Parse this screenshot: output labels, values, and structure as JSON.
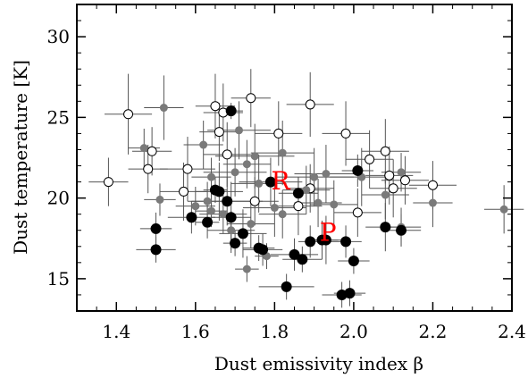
{
  "chart_data": {
    "type": "scatter",
    "xlabel": "Dust emissivity index β",
    "ylabel": "Dust temperature [K]",
    "xlim": [
      1.3,
      2.4
    ],
    "ylim": [
      13,
      32
    ],
    "xticks": [
      1.4,
      1.6,
      1.8,
      2.0,
      2.2,
      2.4
    ],
    "xtick_labels": [
      "1.4",
      "1.6",
      "1.8",
      "2.0",
      "2.2",
      "2.4"
    ],
    "yticks": [
      15,
      20,
      25,
      30
    ],
    "ytick_labels": [
      "15",
      "20",
      "25",
      "30"
    ],
    "grid": false,
    "colors": {
      "filled_black": "#000000",
      "filled_gray": "#7a7a7a",
      "open": "#000000",
      "annotation": "#ff0000",
      "errorbar": "#555555"
    },
    "annotations": [
      {
        "text": "R",
        "x": 1.815,
        "y": 21.1
      },
      {
        "text": "P",
        "x": 1.935,
        "y": 17.9
      }
    ],
    "series": [
      {
        "marker": "filled-black",
        "points": [
          {
            "x": 1.69,
            "y": 25.4,
            "xerr": 0.03,
            "yerr": 0.5
          },
          {
            "x": 1.79,
            "y": 21.0,
            "xerr": 0.08,
            "yerr": 1.5
          },
          {
            "x": 2.01,
            "y": 21.7,
            "xerr": 0.04,
            "yerr": 1.0
          },
          {
            "x": 1.65,
            "y": 20.5,
            "xerr": 0.03,
            "yerr": 0.8
          },
          {
            "x": 1.66,
            "y": 20.4,
            "xerr": 0.06,
            "yerr": 1.8
          },
          {
            "x": 1.68,
            "y": 19.8,
            "xerr": 0.09,
            "yerr": 1.5
          },
          {
            "x": 1.86,
            "y": 20.3,
            "xerr": 0.05,
            "yerr": 1.0
          },
          {
            "x": 1.69,
            "y": 18.8,
            "xerr": 0.05,
            "yerr": 2.2
          },
          {
            "x": 1.59,
            "y": 18.8,
            "xerr": 0.06,
            "yerr": 1.0
          },
          {
            "x": 1.63,
            "y": 18.5,
            "xerr": 0.03,
            "yerr": 1.0
          },
          {
            "x": 1.5,
            "y": 18.1,
            "xerr": 0.04,
            "yerr": 1.0
          },
          {
            "x": 1.72,
            "y": 17.8,
            "xerr": 0.06,
            "yerr": 1.5
          },
          {
            "x": 1.7,
            "y": 17.2,
            "xerr": 0.03,
            "yerr": 0.8
          },
          {
            "x": 1.76,
            "y": 16.9,
            "xerr": 0.04,
            "yerr": 0.8
          },
          {
            "x": 1.77,
            "y": 16.8,
            "xerr": 0.05,
            "yerr": 1.0
          },
          {
            "x": 1.5,
            "y": 16.8,
            "xerr": 0.05,
            "yerr": 0.8
          },
          {
            "x": 1.85,
            "y": 16.5,
            "xerr": 0.06,
            "yerr": 1.0
          },
          {
            "x": 1.87,
            "y": 16.2,
            "xerr": 0.05,
            "yerr": 0.8
          },
          {
            "x": 1.89,
            "y": 17.3,
            "xerr": 0.03,
            "yerr": 1.0
          },
          {
            "x": 1.92,
            "y": 17.4,
            "xerr": 0.04,
            "yerr": 1.2
          },
          {
            "x": 1.93,
            "y": 17.4,
            "xerr": 0.05,
            "yerr": 1.5
          },
          {
            "x": 1.98,
            "y": 17.3,
            "xerr": 0.04,
            "yerr": 1.0
          },
          {
            "x": 2.08,
            "y": 18.2,
            "xerr": 0.05,
            "yerr": 1.5
          },
          {
            "x": 2.12,
            "y": 18.0,
            "xerr": 0.05,
            "yerr": 1.0
          },
          {
            "x": 2.0,
            "y": 16.1,
            "xerr": 0.04,
            "yerr": 0.8
          },
          {
            "x": 1.83,
            "y": 14.5,
            "xerr": 0.07,
            "yerr": 0.8
          },
          {
            "x": 1.97,
            "y": 14.0,
            "xerr": 0.05,
            "yerr": 0.8
          },
          {
            "x": 1.99,
            "y": 14.1,
            "xerr": 0.04,
            "yerr": 0.8
          }
        ]
      },
      {
        "marker": "filled-gray",
        "points": [
          {
            "x": 1.52,
            "y": 25.6,
            "xerr": 0.05,
            "yerr": 2.0
          },
          {
            "x": 1.47,
            "y": 23.1,
            "xerr": 0.04,
            "yerr": 1.2
          },
          {
            "x": 1.62,
            "y": 23.3,
            "xerr": 0.05,
            "yerr": 1.5
          },
          {
            "x": 1.71,
            "y": 24.2,
            "xerr": 0.08,
            "yerr": 1.8
          },
          {
            "x": 1.73,
            "y": 22.1,
            "xerr": 0.06,
            "yerr": 1.5
          },
          {
            "x": 1.75,
            "y": 22.6,
            "xerr": 0.1,
            "yerr": 2.0
          },
          {
            "x": 1.7,
            "y": 21.6,
            "xerr": 0.08,
            "yerr": 1.5
          },
          {
            "x": 1.64,
            "y": 21.3,
            "xerr": 0.05,
            "yerr": 1.2
          },
          {
            "x": 1.63,
            "y": 19.8,
            "xerr": 0.05,
            "yerr": 1.2
          },
          {
            "x": 1.64,
            "y": 19.2,
            "xerr": 0.04,
            "yerr": 1.0
          },
          {
            "x": 1.51,
            "y": 19.9,
            "xerr": 0.04,
            "yerr": 1.0
          },
          {
            "x": 1.6,
            "y": 19.5,
            "xerr": 0.05,
            "yerr": 1.2
          },
          {
            "x": 1.67,
            "y": 19.0,
            "xerr": 0.06,
            "yerr": 1.2
          },
          {
            "x": 1.69,
            "y": 18.0,
            "xerr": 0.06,
            "yerr": 1.2
          },
          {
            "x": 1.74,
            "y": 18.4,
            "xerr": 0.06,
            "yerr": 1.5
          },
          {
            "x": 1.76,
            "y": 20.9,
            "xerr": 0.07,
            "yerr": 1.8
          },
          {
            "x": 1.8,
            "y": 19.4,
            "xerr": 0.08,
            "yerr": 1.8
          },
          {
            "x": 1.82,
            "y": 19.0,
            "xerr": 0.06,
            "yerr": 1.5
          },
          {
            "x": 1.82,
            "y": 22.8,
            "xerr": 0.08,
            "yerr": 2.0
          },
          {
            "x": 1.88,
            "y": 20.5,
            "xerr": 0.06,
            "yerr": 1.5
          },
          {
            "x": 1.9,
            "y": 21.3,
            "xerr": 0.1,
            "yerr": 1.8
          },
          {
            "x": 1.91,
            "y": 19.7,
            "xerr": 0.06,
            "yerr": 1.5
          },
          {
            "x": 1.93,
            "y": 21.5,
            "xerr": 0.08,
            "yerr": 1.8
          },
          {
            "x": 1.95,
            "y": 19.6,
            "xerr": 0.06,
            "yerr": 1.5
          },
          {
            "x": 2.02,
            "y": 21.3,
            "xerr": 0.08,
            "yerr": 1.8
          },
          {
            "x": 2.08,
            "y": 20.2,
            "xerr": 0.06,
            "yerr": 1.5
          },
          {
            "x": 2.12,
            "y": 21.6,
            "xerr": 0.05,
            "yerr": 1.2
          },
          {
            "x": 2.12,
            "y": 18.2,
            "xerr": 0.05,
            "yerr": 1.2
          },
          {
            "x": 2.2,
            "y": 19.7,
            "xerr": 0.05,
            "yerr": 1.5
          },
          {
            "x": 2.38,
            "y": 19.3,
            "xerr": 0.05,
            "yerr": 1.5
          },
          {
            "x": 1.73,
            "y": 15.6,
            "xerr": 0.03,
            "yerr": 0.8
          },
          {
            "x": 1.78,
            "y": 16.4,
            "xerr": 0.03,
            "yerr": 0.8
          }
        ]
      },
      {
        "marker": "open",
        "points": [
          {
            "x": 1.43,
            "y": 25.2,
            "xerr": 0.06,
            "yerr": 2.5
          },
          {
            "x": 1.38,
            "y": 21.0,
            "xerr": 0.05,
            "yerr": 1.5
          },
          {
            "x": 1.48,
            "y": 21.8,
            "xerr": 0.05,
            "yerr": 1.5
          },
          {
            "x": 1.49,
            "y": 22.9,
            "xerr": 0.05,
            "yerr": 1.5
          },
          {
            "x": 1.58,
            "y": 21.8,
            "xerr": 0.07,
            "yerr": 2.0
          },
          {
            "x": 1.57,
            "y": 20.4,
            "xerr": 0.06,
            "yerr": 1.8
          },
          {
            "x": 1.65,
            "y": 25.7,
            "xerr": 0.05,
            "yerr": 2.0
          },
          {
            "x": 1.67,
            "y": 25.3,
            "xerr": 0.05,
            "yerr": 1.8
          },
          {
            "x": 1.74,
            "y": 26.2,
            "xerr": 0.05,
            "yerr": 1.8
          },
          {
            "x": 1.66,
            "y": 24.1,
            "xerr": 0.05,
            "yerr": 1.8
          },
          {
            "x": 1.68,
            "y": 22.7,
            "xerr": 0.06,
            "yerr": 2.0
          },
          {
            "x": 1.81,
            "y": 24.0,
            "xerr": 0.06,
            "yerr": 2.0
          },
          {
            "x": 1.89,
            "y": 25.8,
            "xerr": 0.06,
            "yerr": 2.0
          },
          {
            "x": 1.98,
            "y": 24.0,
            "xerr": 0.06,
            "yerr": 2.0
          },
          {
            "x": 1.86,
            "y": 19.5,
            "xerr": 0.06,
            "yerr": 1.8
          },
          {
            "x": 1.89,
            "y": 20.6,
            "xerr": 0.06,
            "yerr": 1.5
          },
          {
            "x": 2.04,
            "y": 22.4,
            "xerr": 0.06,
            "yerr": 1.8
          },
          {
            "x": 2.08,
            "y": 22.9,
            "xerr": 0.06,
            "yerr": 2.0
          },
          {
            "x": 2.09,
            "y": 21.4,
            "xerr": 0.06,
            "yerr": 1.8
          },
          {
            "x": 2.1,
            "y": 20.6,
            "xerr": 0.06,
            "yerr": 1.8
          },
          {
            "x": 2.01,
            "y": 19.1,
            "xerr": 0.06,
            "yerr": 1.5
          },
          {
            "x": 2.13,
            "y": 21.1,
            "xerr": 0.06,
            "yerr": 1.5
          },
          {
            "x": 2.2,
            "y": 20.8,
            "xerr": 0.06,
            "yerr": 1.5
          },
          {
            "x": 1.75,
            "y": 19.8,
            "xerr": 0.06,
            "yerr": 1.5
          }
        ]
      }
    ]
  }
}
